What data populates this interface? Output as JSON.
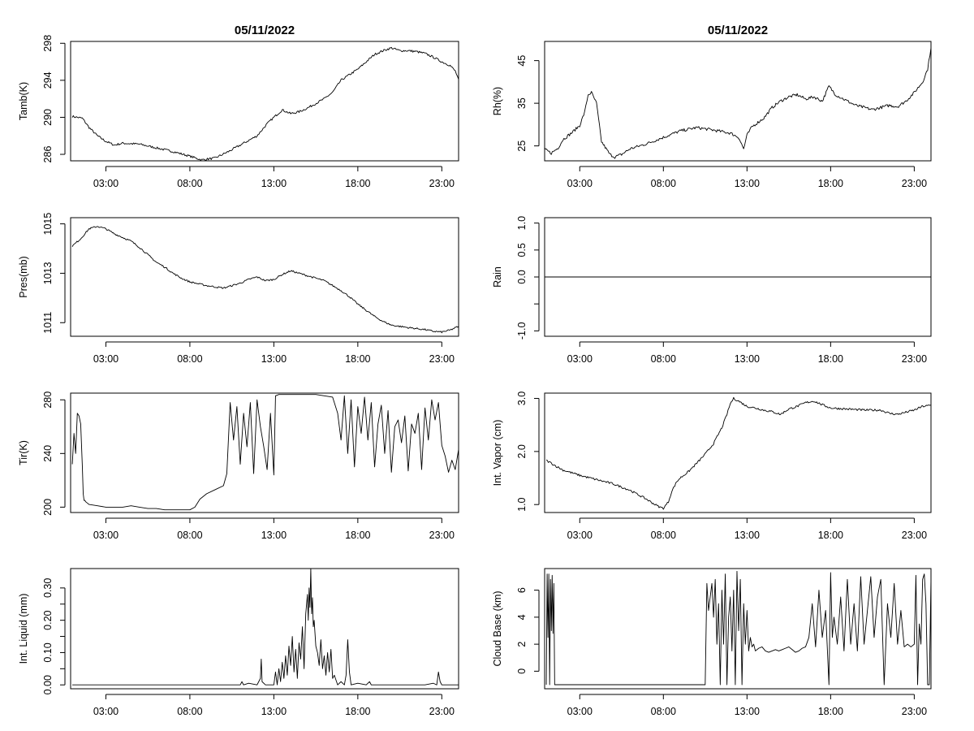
{
  "chart_data": [
    {
      "id": "tamb",
      "type": "line",
      "title": "05/11/2022",
      "ylabel": "Tamb(K)",
      "xlim": [
        0.9,
        24.0
      ],
      "ylim": [
        285.3,
        298.2
      ],
      "xticks": [
        3,
        8,
        13,
        18,
        23
      ],
      "xtick_labels": [
        "03:00",
        "08:00",
        "13:00",
        "18:00",
        "23:00"
      ],
      "yticks": [
        286,
        290,
        294,
        298
      ],
      "ytick_labels": [
        "286",
        "290",
        "294",
        "298"
      ],
      "noise": 0.12,
      "spiky": false,
      "x": [
        1.0,
        1.6,
        2.0,
        2.5,
        3.0,
        3.5,
        4.0,
        5.0,
        6.0,
        7.0,
        8.0,
        8.7,
        9.5,
        10.3,
        11.0,
        12.0,
        12.6,
        13.0,
        13.5,
        14.0,
        14.5,
        15.0,
        16.0,
        16.5,
        17.0,
        17.5,
        18.0,
        18.5,
        19.0,
        19.5,
        20.0,
        20.5,
        21.0,
        21.5,
        22.0,
        22.5,
        23.0,
        23.5,
        23.8,
        24.0
      ],
      "y": [
        290.1,
        289.9,
        288.9,
        288.0,
        287.4,
        287.0,
        287.2,
        287.1,
        286.7,
        286.3,
        285.8,
        285.4,
        285.6,
        286.3,
        287.0,
        288.0,
        289.3,
        290.0,
        290.8,
        290.4,
        290.6,
        291.0,
        292.0,
        292.7,
        294.0,
        294.6,
        295.2,
        296.0,
        296.8,
        297.2,
        297.5,
        297.2,
        297.2,
        297.1,
        296.9,
        296.5,
        296.0,
        295.6,
        295.0,
        294.1
      ]
    },
    {
      "id": "rh",
      "type": "line",
      "title": "05/11/2022",
      "ylabel": "Rh(%)",
      "xlim": [
        0.9,
        24.0
      ],
      "ylim": [
        21.5,
        49.5
      ],
      "xticks": [
        3,
        8,
        13,
        18,
        23
      ],
      "xtick_labels": [
        "03:00",
        "08:00",
        "13:00",
        "18:00",
        "23:00"
      ],
      "yticks": [
        25,
        35,
        45
      ],
      "ytick_labels": [
        "25",
        "35",
        "45"
      ],
      "noise": 0.35,
      "spiky": false,
      "x": [
        0.9,
        1.3,
        1.7,
        2.0,
        2.5,
        3.0,
        3.3,
        3.5,
        3.7,
        4.0,
        4.3,
        4.8,
        5.1,
        5.5,
        6.0,
        7.0,
        8.0,
        9.0,
        10.0,
        11.0,
        12.0,
        12.5,
        12.8,
        13.0,
        13.3,
        14.0,
        14.5,
        15.0,
        15.5,
        16.0,
        16.5,
        17.0,
        17.5,
        17.9,
        18.3,
        19.0,
        19.5,
        20.0,
        20.5,
        21.0,
        21.5,
        22.0,
        22.5,
        23.0,
        23.5,
        23.8,
        24.0
      ],
      "y": [
        24.2,
        23.3,
        24.5,
        26.5,
        28.0,
        29.8,
        33.0,
        37.0,
        37.5,
        35.0,
        26.0,
        23.0,
        22.4,
        23.0,
        24.3,
        25.5,
        27.0,
        28.5,
        29.3,
        28.7,
        28.0,
        27.0,
        24.3,
        27.5,
        29.5,
        31.5,
        34.0,
        35.5,
        36.5,
        37.0,
        36.0,
        36.5,
        35.5,
        39.0,
        37.0,
        35.5,
        34.5,
        34.0,
        33.5,
        34.0,
        34.5,
        34.2,
        35.5,
        37.5,
        40.0,
        43.0,
        48.0
      ]
    },
    {
      "id": "pres",
      "type": "line",
      "title": "",
      "ylabel": "Pres(mb)",
      "xlim": [
        0.9,
        24.0
      ],
      "ylim": [
        1010.45,
        1015.25
      ],
      "xticks": [
        3,
        8,
        13,
        18,
        23
      ],
      "xtick_labels": [
        "03:00",
        "08:00",
        "13:00",
        "18:00",
        "23:00"
      ],
      "yticks": [
        1011,
        1013,
        1015
      ],
      "ytick_labels": [
        "1011",
        "1013",
        "1015"
      ],
      "noise": 0.035,
      "spiky": false,
      "x": [
        1.0,
        1.5,
        2.0,
        2.5,
        3.0,
        3.5,
        4.0,
        4.5,
        5.0,
        5.5,
        6.0,
        6.5,
        7.0,
        7.5,
        8.0,
        9.0,
        10.0,
        11.0,
        11.5,
        12.0,
        12.5,
        13.0,
        13.5,
        14.0,
        14.5,
        15.0,
        16.0,
        17.0,
        17.5,
        18.0,
        18.5,
        19.0,
        19.5,
        20.0,
        21.0,
        22.0,
        22.5,
        23.0,
        23.5,
        24.0
      ],
      "y": [
        1014.1,
        1014.4,
        1014.8,
        1014.9,
        1014.8,
        1014.6,
        1014.45,
        1014.3,
        1014.05,
        1013.75,
        1013.45,
        1013.25,
        1013.0,
        1012.8,
        1012.65,
        1012.5,
        1012.4,
        1012.6,
        1012.75,
        1012.85,
        1012.7,
        1012.75,
        1012.95,
        1013.1,
        1013.0,
        1012.9,
        1012.7,
        1012.3,
        1012.05,
        1011.75,
        1011.5,
        1011.25,
        1011.05,
        1010.9,
        1010.8,
        1010.72,
        1010.65,
        1010.62,
        1010.7,
        1010.85
      ]
    },
    {
      "id": "rain",
      "type": "line",
      "title": "",
      "ylabel": "Rain",
      "xlim": [
        0.9,
        24.0
      ],
      "ylim": [
        -1.1,
        1.1
      ],
      "xticks": [
        3,
        8,
        13,
        18,
        23
      ],
      "xtick_labels": [
        "03:00",
        "08:00",
        "13:00",
        "18:00",
        "23:00"
      ],
      "yticks": [
        -1.0,
        -0.5,
        0.0,
        0.5,
        1.0
      ],
      "ytick_labels": [
        "-1.0",
        "",
        "0.0",
        "0.5",
        "1.0"
      ],
      "noise": 0,
      "spiky": false,
      "x": [
        0.9,
        24.0
      ],
      "y": [
        0.0,
        0.0
      ]
    },
    {
      "id": "tir",
      "type": "line",
      "title": "",
      "ylabel": "Tir(K)",
      "xlim": [
        0.9,
        24.0
      ],
      "ylim": [
        196,
        285
      ],
      "xticks": [
        3,
        8,
        13,
        18,
        23
      ],
      "xtick_labels": [
        "03:00",
        "08:00",
        "13:00",
        "18:00",
        "23:00"
      ],
      "yticks": [
        200,
        240,
        280
      ],
      "ytick_labels": [
        "200",
        "240",
        "280"
      ],
      "noise": 0,
      "spiky": true,
      "x": [
        1.0,
        1.1,
        1.2,
        1.3,
        1.4,
        1.5,
        1.6,
        1.65,
        1.7,
        1.75,
        1.8,
        1.9,
        2.0,
        2.5,
        3.0,
        3.5,
        4.0,
        4.5,
        5.0,
        5.5,
        6.0,
        6.5,
        7.0,
        7.5,
        8.0,
        8.3,
        8.6,
        9.0,
        9.5,
        10.0,
        10.2,
        10.4,
        10.6,
        10.8,
        11.0,
        11.2,
        11.4,
        11.6,
        11.8,
        12.0,
        12.2,
        12.4,
        12.6,
        12.8,
        13.0,
        13.1,
        13.3,
        13.5,
        14.0,
        14.5,
        15.0,
        15.5,
        16.0,
        16.5,
        16.8,
        17.0,
        17.2,
        17.4,
        17.6,
        17.8,
        18.0,
        18.2,
        18.4,
        18.6,
        18.8,
        19.0,
        19.2,
        19.4,
        19.6,
        19.8,
        20.0,
        20.2,
        20.4,
        20.6,
        20.8,
        21.0,
        21.2,
        21.4,
        21.6,
        21.8,
        22.0,
        22.2,
        22.4,
        22.6,
        22.8,
        23.0,
        23.2,
        23.4,
        23.6,
        23.8,
        24.0
      ],
      "y": [
        232,
        255,
        240,
        270,
        268,
        262,
        230,
        210,
        205,
        205,
        204,
        203,
        202,
        201,
        200,
        200,
        200,
        201,
        200,
        199,
        199,
        198,
        198,
        198,
        198,
        200,
        206,
        210,
        213,
        216,
        225,
        278,
        250,
        275,
        232,
        270,
        245,
        278,
        225,
        280,
        260,
        245,
        228,
        270,
        224,
        283,
        284,
        284,
        284,
        284,
        284,
        284,
        283,
        282,
        270,
        250,
        283,
        240,
        280,
        230,
        275,
        255,
        282,
        250,
        278,
        230,
        262,
        276,
        240,
        272,
        226,
        260,
        265,
        248,
        268,
        227,
        262,
        255,
        270,
        228,
        274,
        250,
        280,
        265,
        278,
        246,
        238,
        226,
        235,
        228,
        243
      ]
    },
    {
      "id": "vapor",
      "type": "line",
      "title": "",
      "ylabel": "Int. Vapor (cm)",
      "xlim": [
        0.9,
        24.0
      ],
      "ylim": [
        0.85,
        3.1
      ],
      "xticks": [
        3,
        8,
        13,
        18,
        23
      ],
      "xtick_labels": [
        "03:00",
        "08:00",
        "13:00",
        "18:00",
        "23:00"
      ],
      "yticks": [
        1.0,
        2.0,
        3.0
      ],
      "ytick_labels": [
        "1.0",
        "2.0",
        "3.0"
      ],
      "noise": 0.02,
      "spiky": false,
      "x": [
        1.0,
        1.3,
        1.6,
        2.0,
        3.0,
        4.0,
        5.0,
        6.0,
        7.0,
        7.5,
        7.8,
        8.0,
        8.3,
        8.5,
        8.8,
        9.0,
        9.5,
        10.0,
        10.5,
        11.0,
        11.5,
        11.8,
        12.0,
        12.2,
        12.5,
        13.0,
        13.5,
        14.0,
        14.5,
        15.0,
        15.5,
        16.0,
        16.5,
        17.0,
        17.5,
        18.0,
        19.0,
        20.0,
        21.0,
        21.5,
        22.0,
        22.5,
        23.0,
        23.5,
        24.0
      ],
      "y": [
        1.83,
        1.78,
        1.72,
        1.65,
        1.55,
        1.47,
        1.39,
        1.27,
        1.1,
        1.0,
        0.95,
        0.93,
        1.05,
        1.25,
        1.43,
        1.5,
        1.62,
        1.78,
        1.95,
        2.15,
        2.45,
        2.7,
        2.9,
        3.0,
        2.95,
        2.85,
        2.82,
        2.78,
        2.75,
        2.7,
        2.8,
        2.85,
        2.92,
        2.95,
        2.88,
        2.82,
        2.8,
        2.78,
        2.78,
        2.72,
        2.7,
        2.74,
        2.78,
        2.85,
        2.87
      ]
    },
    {
      "id": "liquid",
      "type": "line",
      "title": "",
      "ylabel": "Int. Liquid (mm)",
      "xlim": [
        0.9,
        24.0
      ],
      "ylim": [
        -0.012,
        0.36
      ],
      "xticks": [
        3,
        8,
        13,
        18,
        23
      ],
      "xtick_labels": [
        "03:00",
        "08:00",
        "13:00",
        "18:00",
        "23:00"
      ],
      "yticks": [
        0.0,
        0.05,
        0.1,
        0.15,
        0.2,
        0.25,
        0.3
      ],
      "ytick_labels": [
        "0.00",
        "",
        "0.10",
        "",
        "0.20",
        "",
        "0.30"
      ],
      "noise": 0,
      "spiky": true,
      "x": [
        1.0,
        11.0,
        11.1,
        11.2,
        11.5,
        12.0,
        12.2,
        12.25,
        12.3,
        12.5,
        13.0,
        13.1,
        13.2,
        13.3,
        13.4,
        13.5,
        13.6,
        13.7,
        13.8,
        13.9,
        14.0,
        14.1,
        14.2,
        14.3,
        14.4,
        14.5,
        14.6,
        14.7,
        14.8,
        14.9,
        15.0,
        15.05,
        15.1,
        15.15,
        15.2,
        15.25,
        15.3,
        15.35,
        15.4,
        15.5,
        15.6,
        15.7,
        15.8,
        15.9,
        16.0,
        16.1,
        16.2,
        16.3,
        16.4,
        16.5,
        16.6,
        16.8,
        17.0,
        17.2,
        17.3,
        17.4,
        17.5,
        17.6,
        18.0,
        18.5,
        18.7,
        18.8,
        19.0,
        22.0,
        22.5,
        22.7,
        22.8,
        22.9,
        23.0,
        24.0
      ],
      "y": [
        0,
        0,
        0.01,
        0,
        0.005,
        0,
        0.02,
        0.08,
        0.01,
        0,
        0,
        0.04,
        0,
        0.05,
        0.01,
        0.07,
        0.02,
        0.09,
        0.03,
        0.12,
        0.06,
        0.15,
        0.04,
        0.11,
        0.02,
        0.13,
        0.08,
        0.18,
        0.05,
        0.22,
        0.28,
        0.2,
        0.3,
        0.24,
        0.36,
        0.22,
        0.27,
        0.18,
        0.2,
        0.12,
        0.1,
        0.06,
        0.14,
        0.05,
        0.09,
        0.03,
        0.1,
        0.04,
        0.11,
        0.02,
        0.03,
        0.0,
        0.01,
        0.0,
        0.03,
        0.14,
        0.04,
        0.0,
        0.005,
        0,
        0.01,
        0,
        0,
        0,
        0.005,
        0,
        0.04,
        0.01,
        0,
        0
      ]
    },
    {
      "id": "cloudbase",
      "type": "line",
      "title": "",
      "ylabel": "Cloud Base (km)",
      "xlim": [
        0.9,
        24.0
      ],
      "ylim": [
        -1.3,
        7.6
      ],
      "xticks": [
        3,
        8,
        13,
        18,
        23
      ],
      "xtick_labels": [
        "03:00",
        "08:00",
        "13:00",
        "18:00",
        "23:00"
      ],
      "yticks": [
        0,
        2,
        4,
        6
      ],
      "ytick_labels": [
        "0",
        "2",
        "4",
        "6"
      ],
      "noise": 0,
      "spiky": true,
      "x": [
        1.0,
        1.05,
        1.1,
        1.15,
        1.2,
        1.25,
        1.3,
        1.35,
        1.4,
        1.45,
        1.5,
        1.55,
        1.6,
        1.65,
        1.7,
        10.5,
        10.6,
        10.7,
        10.8,
        10.9,
        11.0,
        11.1,
        11.2,
        11.3,
        11.4,
        11.5,
        11.6,
        11.7,
        11.8,
        11.9,
        12.0,
        12.1,
        12.2,
        12.3,
        12.4,
        12.5,
        12.6,
        12.7,
        12.8,
        12.9,
        13.0,
        13.1,
        13.2,
        13.3,
        13.4,
        13.5,
        13.7,
        13.9,
        14.1,
        14.3,
        14.5,
        14.7,
        14.9,
        15.1,
        15.3,
        15.5,
        15.7,
        15.9,
        16.1,
        16.3,
        16.5,
        16.7,
        16.9,
        17.1,
        17.3,
        17.5,
        17.7,
        17.9,
        18.0,
        18.1,
        18.2,
        18.4,
        18.6,
        18.8,
        19.0,
        19.2,
        19.4,
        19.6,
        19.8,
        20.0,
        20.2,
        20.4,
        20.6,
        20.8,
        21.0,
        21.2,
        21.4,
        21.6,
        21.8,
        22.0,
        22.2,
        22.4,
        22.6,
        22.8,
        23.0,
        23.1,
        23.2,
        23.3,
        23.4,
        23.5,
        23.6,
        23.7,
        23.8,
        23.9,
        24.0
      ],
      "y": [
        -1,
        7.2,
        2.5,
        7.2,
        -1,
        6.8,
        3,
        7.1,
        2.8,
        6.5,
        -1,
        -1,
        -1,
        -1,
        -1,
        -1,
        6.5,
        4.5,
        5.5,
        6.5,
        4,
        6.8,
        2,
        5,
        -1,
        6,
        2,
        7.2,
        -1,
        4,
        5.5,
        1.5,
        6,
        -1,
        7.4,
        3,
        6.8,
        -1,
        5,
        2,
        4.5,
        1.5,
        2.5,
        1.8,
        2,
        1.5,
        1.7,
        1.8,
        1.5,
        1.4,
        1.5,
        1.6,
        1.5,
        1.6,
        1.7,
        1.8,
        1.6,
        1.4,
        1.5,
        1.7,
        1.8,
        2.5,
        5,
        1.8,
        6,
        2.5,
        4.5,
        -1,
        7.3,
        2.5,
        4,
        2,
        5.5,
        1.5,
        6.8,
        2,
        5,
        1.5,
        7,
        2,
        4.5,
        7,
        2.5,
        5.5,
        6.8,
        -1,
        5,
        2.5,
        6.5,
        2,
        4.5,
        1.8,
        2,
        1.8,
        2,
        7.1,
        -1,
        3.5,
        2,
        6.8,
        7.2,
        5,
        -1,
        -1,
        6.8
      ]
    }
  ]
}
